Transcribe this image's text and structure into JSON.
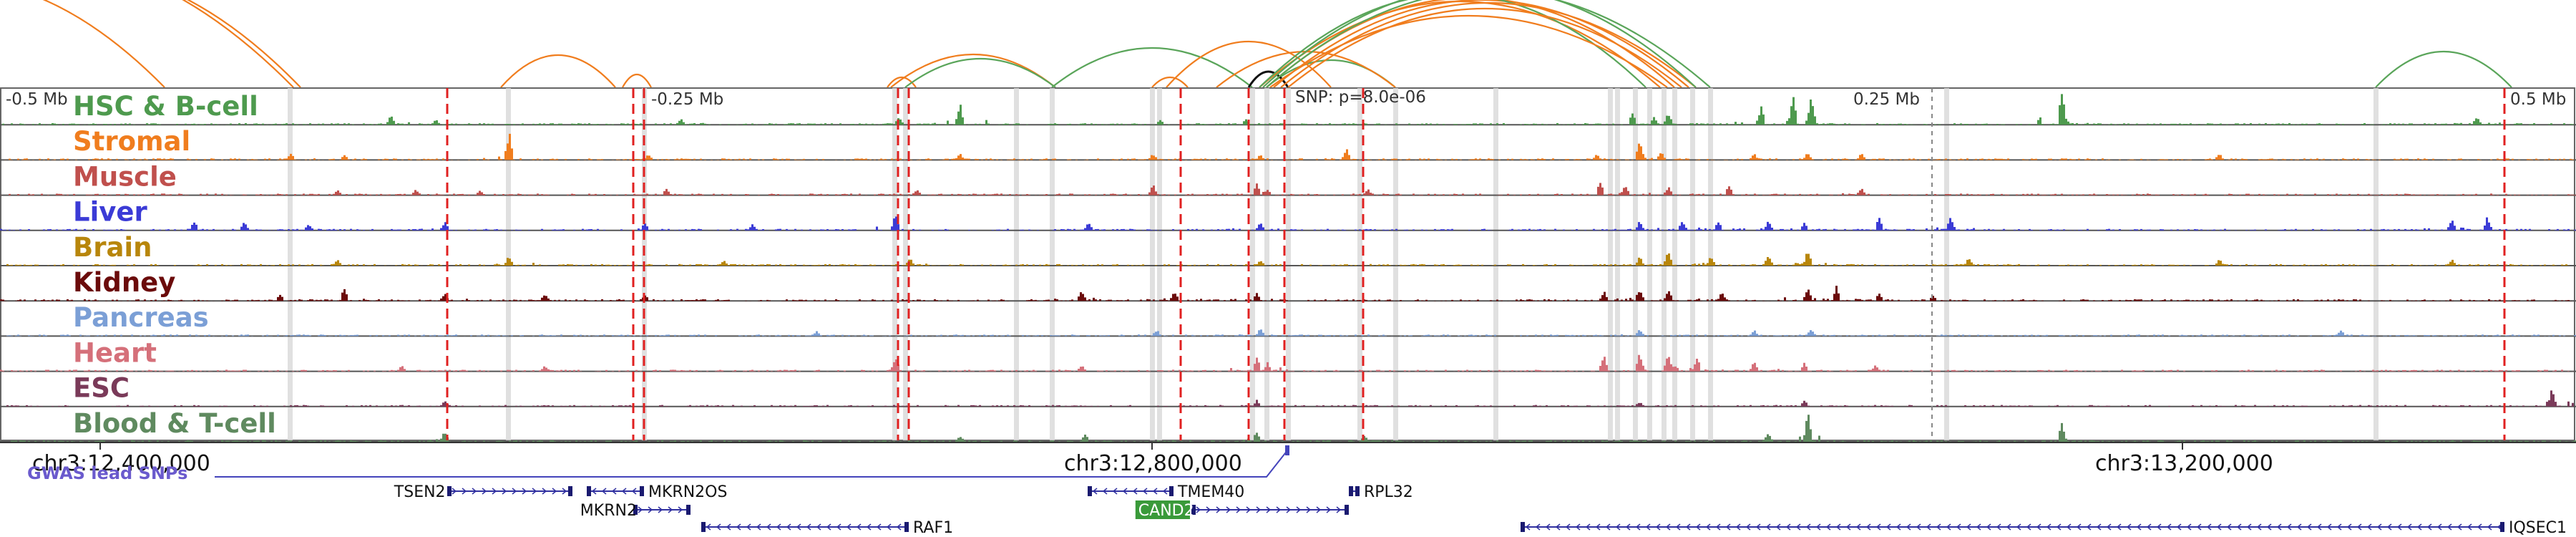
{
  "scale": {
    "minus_half": "-0.5 Mb",
    "minus_quarter": "-0.25 Mb",
    "plus_quarter": "0.25 Mb",
    "plus_half": "0.5 Mb"
  },
  "snp_label": "SNP: p=8.0e-06",
  "tracks": [
    {
      "name": "HSC & B-cell",
      "color": "#4e9a4e",
      "peaks": [
        [
          545,
          14
        ],
        [
          608,
          8
        ],
        [
          950,
          10
        ],
        [
          1255,
          12
        ],
        [
          1340,
          34
        ],
        [
          1620,
          8
        ],
        [
          1740,
          9
        ],
        [
          2280,
          18
        ],
        [
          2310,
          12
        ],
        [
          2330,
          18
        ],
        [
          2460,
          28
        ],
        [
          2505,
          46
        ],
        [
          2530,
          42
        ],
        [
          2880,
          52
        ],
        [
          3460,
          12
        ]
      ]
    },
    {
      "name": "Stromal",
      "color": "#f07d1e",
      "peaks": [
        [
          405,
          10
        ],
        [
          480,
          8
        ],
        [
          710,
          44
        ],
        [
          905,
          10
        ],
        [
          1340,
          10
        ],
        [
          1610,
          10
        ],
        [
          1760,
          8
        ],
        [
          1880,
          18
        ],
        [
          2230,
          10
        ],
        [
          2290,
          30
        ],
        [
          2320,
          14
        ],
        [
          2450,
          10
        ],
        [
          2525,
          12
        ],
        [
          2600,
          10
        ],
        [
          3100,
          10
        ]
      ]
    },
    {
      "name": "Muscle",
      "color": "#c0504d",
      "peaks": [
        [
          470,
          8
        ],
        [
          580,
          10
        ],
        [
          670,
          8
        ],
        [
          930,
          10
        ],
        [
          1280,
          10
        ],
        [
          1610,
          16
        ],
        [
          1755,
          20
        ],
        [
          1770,
          10
        ],
        [
          1910,
          10
        ],
        [
          2235,
          22
        ],
        [
          2270,
          18
        ],
        [
          2330,
          14
        ],
        [
          2415,
          16
        ],
        [
          2600,
          12
        ]
      ]
    },
    {
      "name": "Liver",
      "color": "#3b3bd6",
      "peaks": [
        [
          270,
          14
        ],
        [
          340,
          14
        ],
        [
          430,
          10
        ],
        [
          620,
          14
        ],
        [
          900,
          12
        ],
        [
          1050,
          10
        ],
        [
          1250,
          24
        ],
        [
          1520,
          12
        ],
        [
          1760,
          14
        ],
        [
          2290,
          14
        ],
        [
          2350,
          16
        ],
        [
          2400,
          14
        ],
        [
          2470,
          16
        ],
        [
          2520,
          12
        ],
        [
          2625,
          22
        ],
        [
          2725,
          22
        ],
        [
          3425,
          16
        ],
        [
          3475,
          22
        ]
      ]
    },
    {
      "name": "Brain",
      "color": "#b8860b",
      "peaks": [
        [
          470,
          10
        ],
        [
          710,
          16
        ],
        [
          1010,
          8
        ],
        [
          1270,
          12
        ],
        [
          1760,
          10
        ],
        [
          2290,
          14
        ],
        [
          2330,
          22
        ],
        [
          2390,
          16
        ],
        [
          2470,
          16
        ],
        [
          2525,
          24
        ],
        [
          2750,
          12
        ],
        [
          3100,
          10
        ],
        [
          3425,
          10
        ]
      ]
    },
    {
      "name": "Kidney",
      "color": "#6b0b0b",
      "peaks": [
        [
          390,
          10
        ],
        [
          480,
          22
        ],
        [
          620,
          12
        ],
        [
          760,
          12
        ],
        [
          900,
          10
        ],
        [
          1510,
          18
        ],
        [
          1640,
          14
        ],
        [
          1755,
          12
        ],
        [
          2240,
          16
        ],
        [
          2290,
          20
        ],
        [
          2330,
          18
        ],
        [
          2405,
          14
        ],
        [
          2525,
          20
        ],
        [
          2565,
          24
        ],
        [
          2625,
          12
        ],
        [
          2700,
          10
        ]
      ]
    },
    {
      "name": "Pancreas",
      "color": "#7b9fd6",
      "peaks": [
        [
          1140,
          8
        ],
        [
          1615,
          10
        ],
        [
          1760,
          12
        ],
        [
          2290,
          12
        ],
        [
          2450,
          10
        ],
        [
          2530,
          12
        ],
        [
          3270,
          10
        ]
      ]
    },
    {
      "name": "Heart",
      "color": "#d5707a",
      "peaks": [
        [
          560,
          10
        ],
        [
          760,
          10
        ],
        [
          1250,
          22
        ],
        [
          1510,
          10
        ],
        [
          1755,
          24
        ],
        [
          1770,
          14
        ],
        [
          2240,
          28
        ],
        [
          2290,
          30
        ],
        [
          2330,
          28
        ],
        [
          2370,
          22
        ],
        [
          2450,
          14
        ],
        [
          2520,
          14
        ],
        [
          2620,
          10
        ]
      ]
    },
    {
      "name": "ESC",
      "color": "#7a3a59",
      "peaks": [
        [
          620,
          10
        ],
        [
          1755,
          10
        ],
        [
          2290,
          8
        ],
        [
          2520,
          10
        ],
        [
          3565,
          28
        ]
      ]
    },
    {
      "name": "Blood & T-cell",
      "color": "#5f8a5f",
      "peaks": [
        [
          620,
          16
        ],
        [
          1340,
          10
        ],
        [
          1515,
          12
        ],
        [
          1755,
          18
        ],
        [
          1905,
          10
        ],
        [
          2470,
          16
        ],
        [
          2525,
          46
        ],
        [
          2880,
          30
        ]
      ]
    }
  ],
  "coordinates": {
    "left": "chr3:12,400,000",
    "middle": "chr3:12,800,000",
    "right": "chr3:13,200,000"
  },
  "gwas_label": "GWAS lead SNPs",
  "genes": [
    {
      "name": "TSEN2",
      "row": 0,
      "start": 625,
      "end": 800,
      "label_side": "left",
      "dir": ">",
      "highlight": false
    },
    {
      "name": "MKRN2OS",
      "row": 0,
      "start": 820,
      "end": 900,
      "label_side": "right",
      "dir": "<",
      "highlight": false
    },
    {
      "name": "TMEM40",
      "row": 0,
      "start": 1520,
      "end": 1640,
      "label_side": "right",
      "dir": "<",
      "highlight": false
    },
    {
      "name": "RPL32",
      "row": 0,
      "start": 1885,
      "end": 1900,
      "label_side": "right",
      "dir": ">",
      "highlight": false
    },
    {
      "name": "MKRN2",
      "row": 1,
      "start": 885,
      "end": 965,
      "label_side": "left",
      "dir": ">",
      "highlight": false
    },
    {
      "name": "CAND2",
      "row": 1,
      "start": 1665,
      "end": 1885,
      "label_side": "left",
      "dir": ">",
      "highlight": true
    },
    {
      "name": "RAF1",
      "row": 2,
      "start": 980,
      "end": 1270,
      "label_side": "right",
      "dir": "<",
      "highlight": false
    },
    {
      "name": "IQSEC1",
      "row": 2,
      "start": 2125,
      "end": 3500,
      "label_side": "right",
      "dir": "<",
      "highlight": false
    }
  ]
}
